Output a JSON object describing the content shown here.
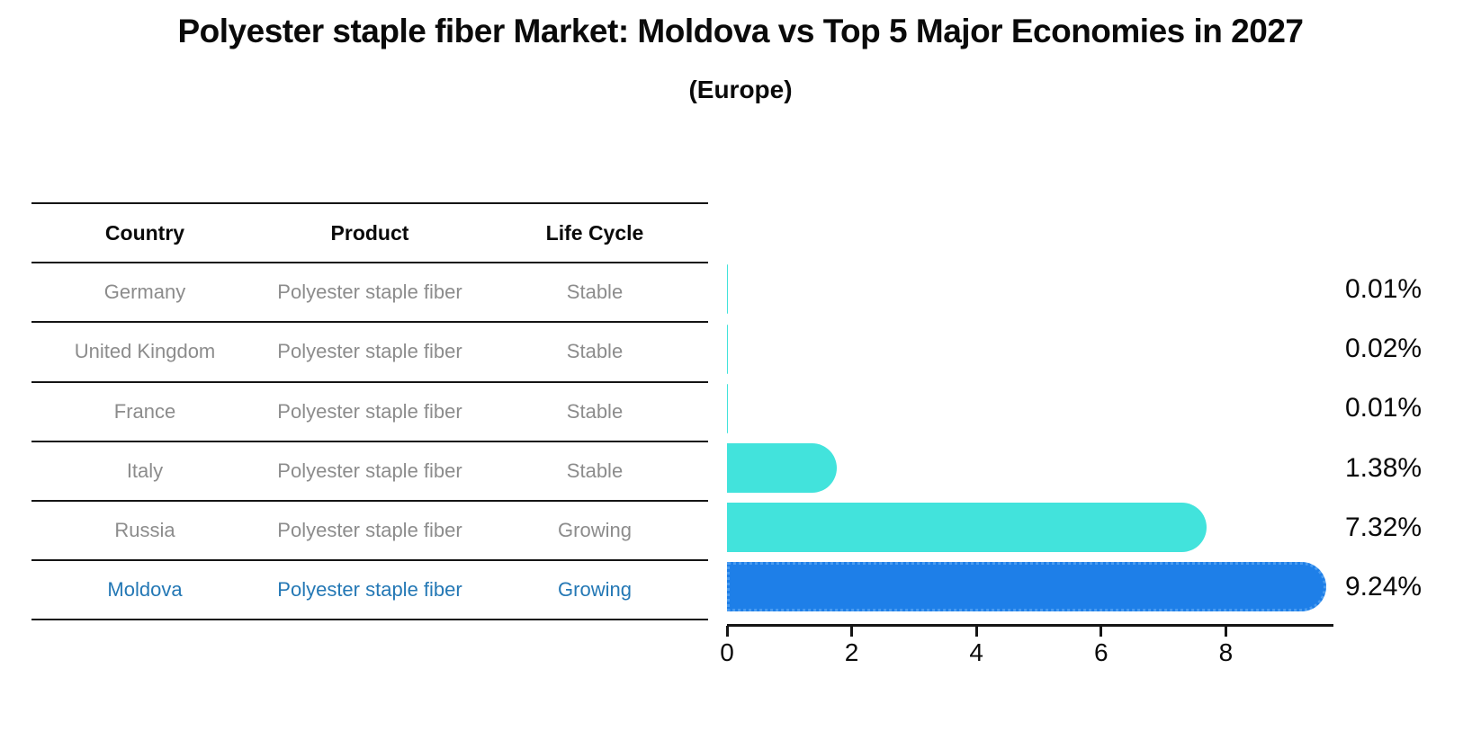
{
  "title": "Polyester staple fiber Market: Moldova vs Top 5 Major Economies in 2027",
  "subtitle": "(Europe)",
  "table": {
    "columns": [
      "Country",
      "Product",
      "Life Cycle"
    ],
    "rows": [
      {
        "country": "Germany",
        "product": "Polyester staple fiber",
        "life_cycle": "Stable",
        "highlight": false
      },
      {
        "country": "United Kingdom",
        "product": "Polyester staple fiber",
        "life_cycle": "Stable",
        "highlight": false
      },
      {
        "country": "France",
        "product": "Polyester staple fiber",
        "life_cycle": "Stable",
        "highlight": false
      },
      {
        "country": "Italy",
        "product": "Polyester staple fiber",
        "life_cycle": "Stable",
        "highlight": false
      },
      {
        "country": "Russia",
        "product": "Polyester staple fiber",
        "life_cycle": "Growing",
        "highlight": false
      },
      {
        "country": "Moldova",
        "product": "Polyester staple fiber",
        "life_cycle": "Growing",
        "highlight": true
      }
    ]
  },
  "chart_data": {
    "type": "bar",
    "orientation": "horizontal",
    "title": "Polyester staple fiber Market: Moldova vs Top 5 Major Economies in 2027 (Europe)",
    "categories": [
      "Germany",
      "United Kingdom",
      "France",
      "Italy",
      "Russia",
      "Moldova"
    ],
    "values": [
      0.01,
      0.02,
      0.01,
      1.38,
      7.32,
      9.24
    ],
    "value_labels": [
      "0.01%",
      "0.02%",
      "0.01%",
      "1.38%",
      "7.32%",
      "9.24%"
    ],
    "x_ticks": [
      0,
      2,
      4,
      6,
      8
    ],
    "xlim": [
      0,
      9.7
    ],
    "grid": false,
    "legend": false,
    "bar_color": "#42E3DC",
    "highlight_color": "#1E7FE8",
    "highlight_index": 5,
    "highlight_text_color": "#2478b5"
  }
}
